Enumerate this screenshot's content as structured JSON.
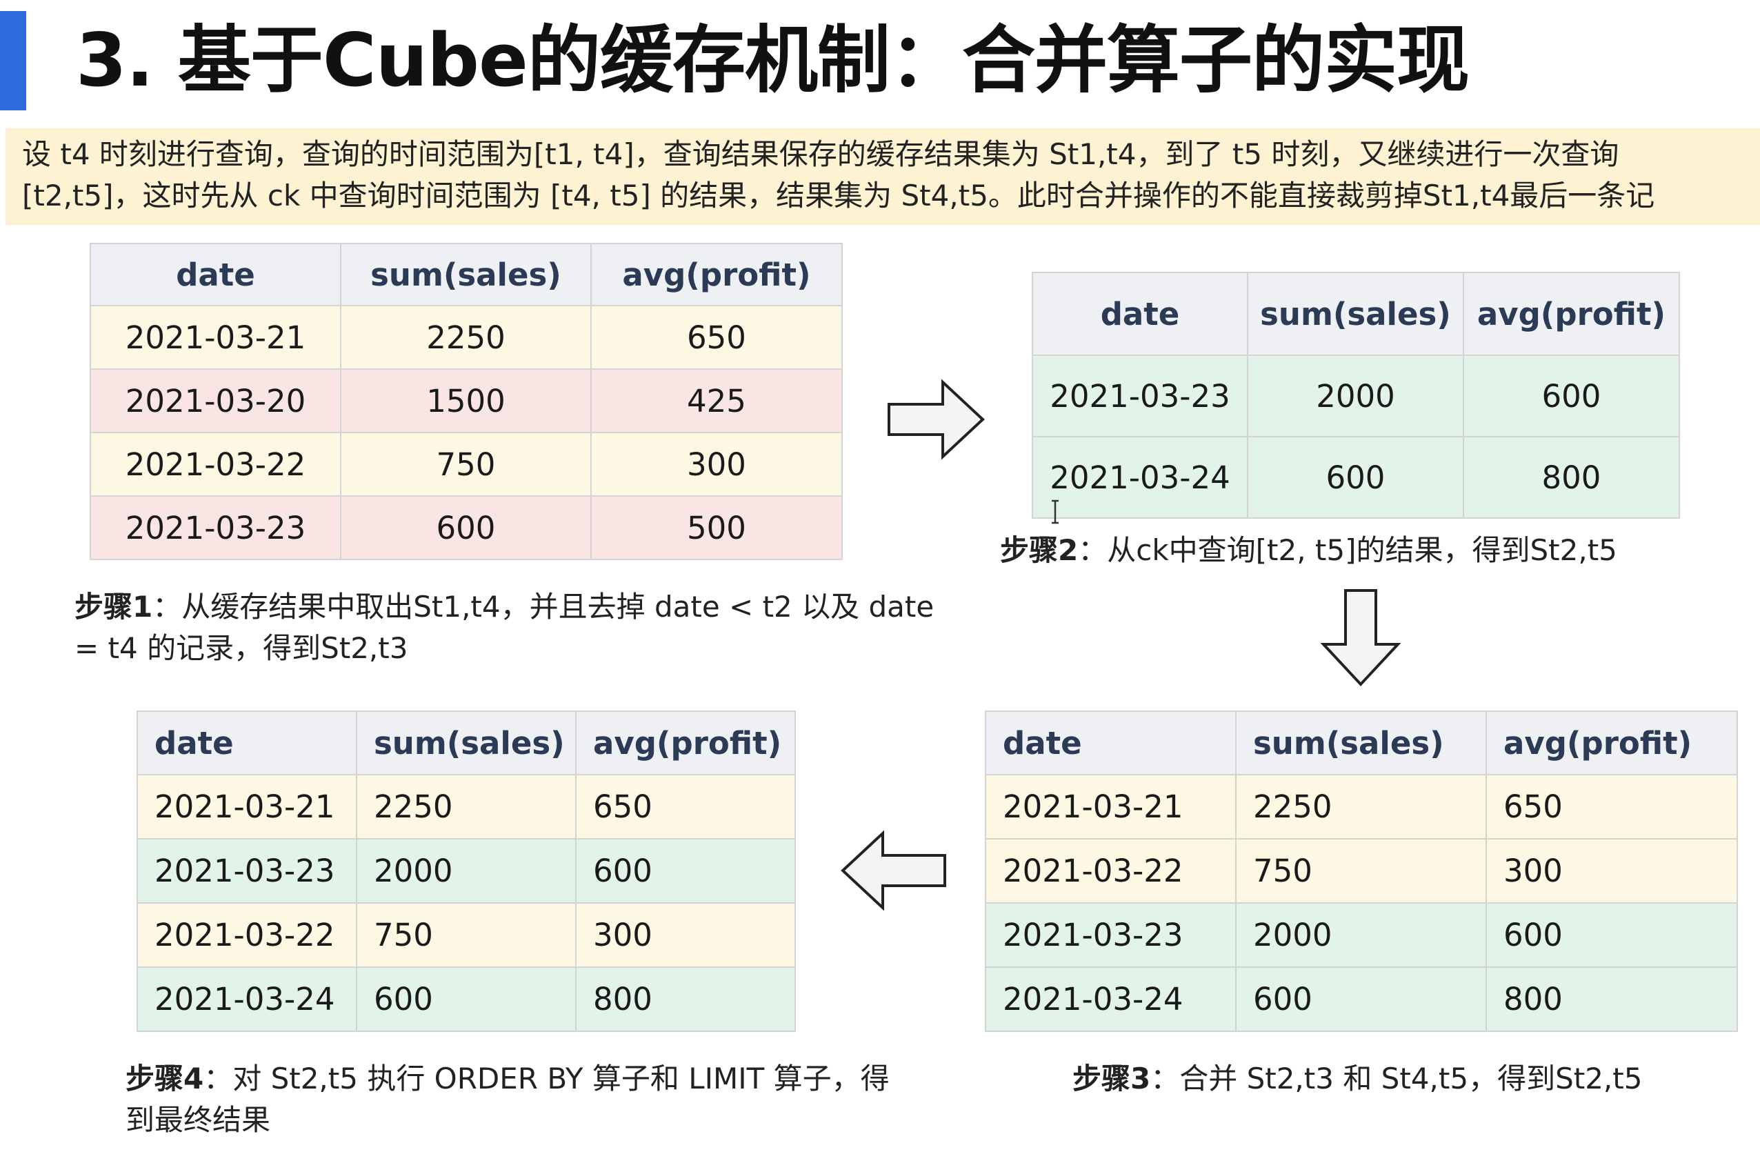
{
  "slide": {
    "title": "3. 基于Cube的缓存机制：合并算子的实现",
    "description_lines": [
      "设 t4 时刻进行查询，查询的时间范围为[t1, t4]，查询结果保存的缓存结果集为 St1,t4，到了 t5 时刻，又继续进行一次查询",
      "[t2,t5]，这时先从 ck 中查询时间范围为 [t4, t5] 的结果，结果集为 St4,t5。此时合并操作的不能直接裁剪掉St1,t4最后一条记"
    ],
    "colors": {
      "accent": "#2f6bdc",
      "desc_bg": "#fdf2d2",
      "row_yellow": "#fcf8e3",
      "row_pink": "#f9e5e3",
      "row_green": "#e2f3ea",
      "header_bg": "#eef0f4"
    }
  },
  "tables": {
    "t1": {
      "headers": [
        "date",
        "sum(sales)",
        "avg(profit)"
      ],
      "rows": [
        [
          "2021-03-21",
          "2250",
          "650"
        ],
        [
          "2021-03-20",
          "1500",
          "425"
        ],
        [
          "2021-03-22",
          "750",
          "300"
        ],
        [
          "2021-03-23",
          "600",
          "500"
        ]
      ]
    },
    "t2": {
      "headers": [
        "date",
        "sum(sales)",
        "avg(profit)"
      ],
      "rows": [
        [
          "2021-03-23",
          "2000",
          "600"
        ],
        [
          "2021-03-24",
          "600",
          "800"
        ]
      ]
    },
    "t3": {
      "headers": [
        "date",
        "sum(sales)",
        "avg(profit)"
      ],
      "rows": [
        [
          "2021-03-21",
          "2250",
          "650"
        ],
        [
          "2021-03-22",
          "750",
          "300"
        ],
        [
          "2021-03-23",
          "2000",
          "600"
        ],
        [
          "2021-03-24",
          "600",
          "800"
        ]
      ]
    },
    "t4": {
      "headers": [
        "date",
        "sum(sales)",
        "avg(profit)"
      ],
      "rows": [
        [
          "2021-03-21",
          "2250",
          "650"
        ],
        [
          "2021-03-23",
          "2000",
          "600"
        ],
        [
          "2021-03-22",
          "750",
          "300"
        ],
        [
          "2021-03-24",
          "600",
          "800"
        ]
      ]
    }
  },
  "captions": {
    "step1": {
      "label": "步骤1",
      "text": "：从缓存结果中取出St1,t4，并且去掉 date < t2 以及 date = t4 的记录，得到St2,t3"
    },
    "step2": {
      "label": "步骤2",
      "text": "：从ck中查询[t2, t5]的结果，得到St2,t5"
    },
    "step3": {
      "label": "步骤3",
      "text": "：合并 St2,t3 和 St4,t5，得到St2,t5"
    },
    "step4": {
      "label": "步骤4",
      "text": "：对 St2,t5 执行 ORDER BY 算子和 LIMIT 算子，得到最终结果"
    }
  },
  "icons": [
    "arrow-right-icon",
    "arrow-down-icon",
    "arrow-left-icon",
    "text-cursor-icon"
  ]
}
